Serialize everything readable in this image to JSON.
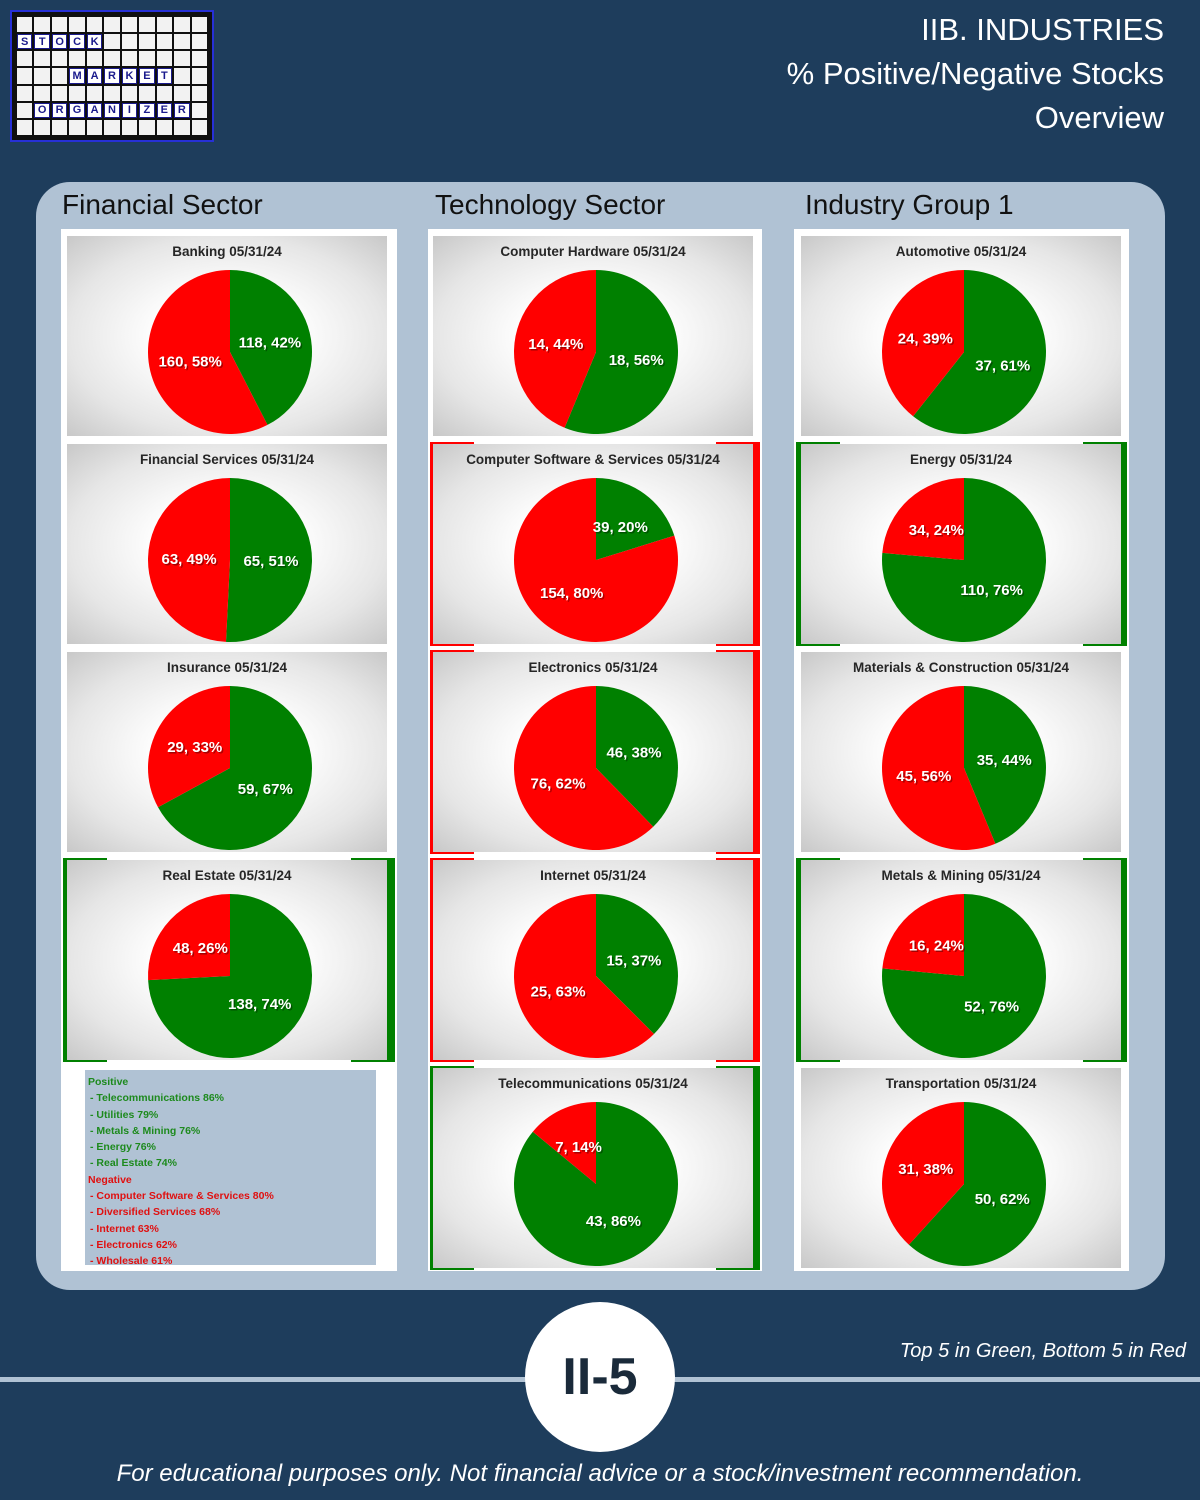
{
  "logo": {
    "rows": [
      [
        "",
        "",
        "",
        "",
        "",
        "",
        "",
        "",
        "",
        "",
        ""
      ],
      [
        "S",
        "T",
        "O",
        "C",
        "K",
        "",
        "",
        "",
        "",
        "",
        ""
      ],
      [
        "",
        "",
        "",
        "",
        "",
        "",
        "",
        "",
        "",
        "",
        ""
      ],
      [
        "",
        "",
        "",
        "M",
        "A",
        "R",
        "K",
        "E",
        "T",
        "",
        ""
      ],
      [
        "",
        "",
        "",
        "",
        "",
        "",
        "",
        "",
        "",
        "",
        ""
      ],
      [
        "",
        "O",
        "R",
        "G",
        "A",
        "N",
        "I",
        "Z",
        "E",
        "R",
        ""
      ],
      [
        "",
        "",
        "",
        "",
        "",
        "",
        "",
        "",
        "",
        "",
        ""
      ]
    ]
  },
  "header": {
    "line1": "IIB. INDUSTRIES",
    "line2": "% Positive/Negative Stocks",
    "line3": "Overview"
  },
  "sectors": [
    {
      "heading": "Financial Sector"
    },
    {
      "heading": "Technology Sector"
    },
    {
      "heading": "Industry Group 1"
    }
  ],
  "colors": {
    "positive": "#008000",
    "negative": "#ff0000",
    "background": "#1e3d5c",
    "panel": "#b0c2d4"
  },
  "chart_data": [
    {
      "type": "pie",
      "title": "Banking 05/31/24",
      "positive": 118,
      "positive_pct": "42%",
      "negative": 160,
      "negative_pct": "58%",
      "column": 0,
      "row": 0,
      "highlight": ""
    },
    {
      "type": "pie",
      "title": "Financial Services 05/31/24",
      "positive": 65,
      "positive_pct": "51%",
      "negative": 63,
      "negative_pct": "49%",
      "column": 0,
      "row": 1,
      "highlight": ""
    },
    {
      "type": "pie",
      "title": "Insurance 05/31/24",
      "positive": 59,
      "positive_pct": "67%",
      "negative": 29,
      "negative_pct": "33%",
      "column": 0,
      "row": 2,
      "highlight": ""
    },
    {
      "type": "pie",
      "title": "Real Estate 05/31/24",
      "positive": 138,
      "positive_pct": "74%",
      "negative": 48,
      "negative_pct": "26%",
      "column": 0,
      "row": 3,
      "highlight": "positive"
    },
    {
      "type": "pie",
      "title": "Computer Hardware 05/31/24",
      "positive": 18,
      "positive_pct": "56%",
      "negative": 14,
      "negative_pct": "44%",
      "column": 1,
      "row": 0,
      "highlight": ""
    },
    {
      "type": "pie",
      "title": "Computer Software & Services 05/31/24",
      "positive": 39,
      "positive_pct": "20%",
      "negative": 154,
      "negative_pct": "80%",
      "column": 1,
      "row": 1,
      "highlight": "negative"
    },
    {
      "type": "pie",
      "title": "Electronics 05/31/24",
      "positive": 46,
      "positive_pct": "38%",
      "negative": 76,
      "negative_pct": "62%",
      "column": 1,
      "row": 2,
      "highlight": "negative"
    },
    {
      "type": "pie",
      "title": "Internet 05/31/24",
      "positive": 15,
      "positive_pct": "37%",
      "negative": 25,
      "negative_pct": "63%",
      "column": 1,
      "row": 3,
      "highlight": "negative"
    },
    {
      "type": "pie",
      "title": "Telecommunications 05/31/24",
      "positive": 43,
      "positive_pct": "86%",
      "negative": 7,
      "negative_pct": "14%",
      "column": 1,
      "row": 4,
      "highlight": "positive"
    },
    {
      "type": "pie",
      "title": "Automotive 05/31/24",
      "positive": 37,
      "positive_pct": "61%",
      "negative": 24,
      "negative_pct": "39%",
      "column": 2,
      "row": 0,
      "highlight": ""
    },
    {
      "type": "pie",
      "title": "Energy 05/31/24",
      "positive": 110,
      "positive_pct": "76%",
      "negative": 34,
      "negative_pct": "24%",
      "column": 2,
      "row": 1,
      "highlight": "positive"
    },
    {
      "type": "pie",
      "title": "Materials & Construction 05/31/24",
      "positive": 35,
      "positive_pct": "44%",
      "negative": 45,
      "negative_pct": "56%",
      "column": 2,
      "row": 2,
      "highlight": ""
    },
    {
      "type": "pie",
      "title": "Metals & Mining 05/31/24",
      "positive": 52,
      "positive_pct": "76%",
      "negative": 16,
      "negative_pct": "24%",
      "column": 2,
      "row": 3,
      "highlight": "positive"
    },
    {
      "type": "pie",
      "title": "Transportation 05/31/24",
      "positive": 50,
      "positive_pct": "62%",
      "negative": 31,
      "negative_pct": "38%",
      "column": 2,
      "row": 4,
      "highlight": ""
    }
  ],
  "summary": {
    "positive_heading": "Positive",
    "positive_items": [
      "- Telecommunications 86%",
      "- Utilities 79%",
      "- Metals & Mining 76%",
      "- Energy 76%",
      "- Real Estate 74%"
    ],
    "negative_heading": "Negative",
    "negative_items": [
      "- Computer Software & Services 80%",
      "- Diversified Services 68%",
      "- Internet 63%",
      "- Electronics 62%",
      "- Wholesale 61%"
    ]
  },
  "footer": {
    "badge": "II-5",
    "legend_note": "Top 5 in Green, Bottom 5 in Red",
    "disclaimer": "For educational purposes only. Not financial advice or a stock/investment recommendation."
  }
}
